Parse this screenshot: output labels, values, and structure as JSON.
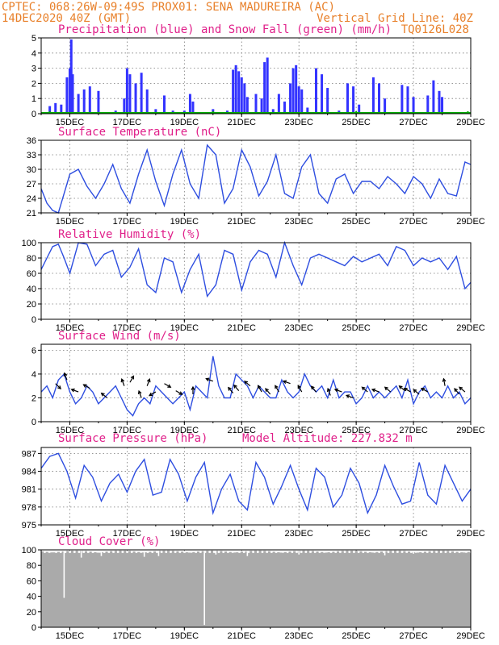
{
  "header": {
    "line1_left": "CPTEC:   068:26W-09:49S   PROX01: SENA MADUREIRA (AC)",
    "line2_left": "14DEC2020 40Z (GMT)",
    "line2_right": "Vertical Grid Line: 40Z",
    "line3_right": "TQ0126L028"
  },
  "colors": {
    "precip": "#3333ff",
    "snow": "#00aa00",
    "line": "#2e4ee0",
    "cloud": "#aaaaaa",
    "title": "#e0208a",
    "header": "#e8802a"
  },
  "x_ticks": [
    "15DEC",
    "17DEC",
    "19DEC",
    "21DEC",
    "23DEC",
    "25DEC",
    "27DEC",
    "29DEC"
  ],
  "chart_data": [
    {
      "id": "precip",
      "type": "bar",
      "title": "Precipitation (blue) and Snow Fall (green) (mm/h)",
      "ylim": [
        0,
        5
      ],
      "yticks": [
        "0",
        "1",
        "2",
        "3",
        "4",
        "5"
      ],
      "series": [
        {
          "name": "blue",
          "points": [
            [
              14.3,
              0.5
            ],
            [
              14.5,
              0.7
            ],
            [
              14.7,
              0.6
            ],
            [
              14.9,
              2.4
            ],
            [
              15.0,
              3.0
            ],
            [
              15.05,
              4.9
            ],
            [
              15.1,
              2.6
            ],
            [
              15.3,
              1.3
            ],
            [
              15.5,
              1.6
            ],
            [
              15.7,
              1.8
            ],
            [
              16.0,
              1.5
            ],
            [
              16.6,
              0.2
            ],
            [
              16.9,
              1.0
            ],
            [
              17.0,
              3.0
            ],
            [
              17.1,
              2.6
            ],
            [
              17.3,
              2.0
            ],
            [
              17.5,
              2.7
            ],
            [
              17.7,
              1.6
            ],
            [
              18.0,
              0.3
            ],
            [
              18.3,
              1.2
            ],
            [
              18.6,
              0.2
            ],
            [
              19.0,
              0.2
            ],
            [
              19.2,
              1.3
            ],
            [
              19.3,
              0.8
            ],
            [
              20.0,
              0.3
            ],
            [
              20.5,
              0.2
            ],
            [
              20.7,
              2.9
            ],
            [
              20.8,
              3.2
            ],
            [
              20.9,
              2.8
            ],
            [
              21.0,
              2.4
            ],
            [
              21.1,
              2.0
            ],
            [
              21.2,
              1.1
            ],
            [
              21.5,
              1.3
            ],
            [
              21.7,
              1.0
            ],
            [
              21.8,
              3.4
            ],
            [
              21.9,
              3.7
            ],
            [
              22.1,
              0.3
            ],
            [
              22.3,
              1.3
            ],
            [
              22.5,
              0.8
            ],
            [
              22.7,
              2.0
            ],
            [
              22.8,
              3.0
            ],
            [
              22.9,
              3.2
            ],
            [
              23.0,
              1.8
            ],
            [
              23.1,
              1.6
            ],
            [
              23.3,
              0.4
            ],
            [
              23.6,
              3.0
            ],
            [
              23.8,
              2.6
            ],
            [
              24.0,
              1.7
            ],
            [
              24.4,
              0.2
            ],
            [
              24.7,
              2.0
            ],
            [
              24.9,
              1.8
            ],
            [
              25.1,
              0.6
            ],
            [
              25.6,
              2.4
            ],
            [
              25.8,
              2.0
            ],
            [
              26.0,
              1.0
            ],
            [
              26.6,
              1.9
            ],
            [
              26.8,
              1.8
            ],
            [
              27.0,
              1.1
            ],
            [
              27.5,
              1.2
            ],
            [
              27.7,
              2.2
            ],
            [
              27.9,
              1.5
            ],
            [
              28.0,
              1.1
            ]
          ]
        },
        {
          "name": "green",
          "points": [
            [
              14.3,
              0.05
            ],
            [
              20.0,
              0.05
            ],
            [
              25.0,
              0.05
            ],
            [
              28.9,
              0.08
            ]
          ]
        }
      ]
    },
    {
      "id": "temperature",
      "type": "line",
      "title": "Surface Temperature (nC)",
      "ylim": [
        21,
        36
      ],
      "yticks": [
        "21",
        "24",
        "27",
        "30",
        "33",
        "36"
      ],
      "x": [
        14.0,
        14.2,
        14.4,
        14.6,
        15.0,
        15.3,
        15.6,
        15.9,
        16.2,
        16.5,
        16.8,
        17.1,
        17.4,
        17.7,
        18.0,
        18.3,
        18.6,
        18.9,
        19.2,
        19.5,
        19.8,
        20.1,
        20.4,
        20.7,
        21.0,
        21.3,
        21.6,
        21.9,
        22.2,
        22.5,
        22.8,
        23.1,
        23.4,
        23.7,
        24.0,
        24.3,
        24.6,
        24.9,
        25.2,
        25.5,
        25.8,
        26.1,
        26.4,
        26.7,
        27.0,
        27.3,
        27.6,
        27.9,
        28.2,
        28.5,
        28.8,
        29.0
      ],
      "values": [
        26.0,
        23.0,
        21.5,
        21.0,
        29.0,
        30.0,
        26.5,
        24.0,
        27.0,
        31.0,
        26.0,
        23.0,
        29.0,
        34.0,
        27.5,
        22.5,
        29.0,
        34.0,
        27.0,
        24.0,
        35.0,
        33.0,
        23.0,
        26.0,
        34.0,
        30.5,
        24.5,
        27.5,
        33.0,
        25.0,
        24.0,
        30.5,
        33.0,
        25.0,
        23.0,
        28.0,
        29.0,
        25.0,
        27.5,
        27.5,
        26.0,
        28.5,
        27.0,
        25.0,
        28.5,
        27.0,
        24.0,
        28.0,
        25.0,
        24.5,
        31.5,
        31.0
      ]
    },
    {
      "id": "humidity",
      "type": "line",
      "title": "Relative Humidity (%)",
      "ylim": [
        0,
        100
      ],
      "yticks": [
        "0",
        "20",
        "40",
        "60",
        "80",
        "100"
      ],
      "x": [
        14.0,
        14.2,
        14.4,
        14.6,
        14.8,
        15.0,
        15.3,
        15.6,
        15.9,
        16.2,
        16.5,
        16.8,
        17.1,
        17.4,
        17.7,
        18.0,
        18.3,
        18.6,
        18.9,
        19.2,
        19.5,
        19.8,
        20.1,
        20.4,
        20.7,
        21.0,
        21.3,
        21.6,
        21.9,
        22.2,
        22.5,
        22.8,
        23.1,
        23.4,
        23.7,
        24.0,
        24.3,
        24.6,
        24.9,
        25.2,
        25.5,
        25.8,
        26.1,
        26.4,
        26.7,
        27.0,
        27.3,
        27.6,
        27.9,
        28.2,
        28.5,
        28.8,
        29.0
      ],
      "values": [
        65.0,
        80.0,
        95.0,
        98.0,
        80.0,
        60.0,
        100.0,
        98.0,
        70.0,
        85.0,
        90.0,
        55.0,
        68.0,
        92.0,
        45.0,
        35.0,
        80.0,
        75.0,
        35.0,
        65.0,
        85.0,
        30.0,
        45.0,
        90.0,
        85.0,
        38.0,
        75.0,
        90.0,
        85.0,
        55.0,
        100.0,
        70.0,
        45.0,
        80.0,
        85.0,
        80.0,
        75.0,
        70.0,
        82.0,
        75.0,
        80.0,
        85.0,
        70.0,
        95.0,
        90.0,
        70.0,
        80.0,
        75.0,
        80.0,
        65.0,
        82.0,
        40.0,
        48.0
      ]
    },
    {
      "id": "wind",
      "type": "line",
      "title": "Surface Wind (m/s)",
      "ylim": [
        0,
        6.5
      ],
      "yticks": [
        "0",
        "2",
        "4",
        "6"
      ],
      "x": [
        14.0,
        14.2,
        14.4,
        14.6,
        14.8,
        15.0,
        15.2,
        15.4,
        15.6,
        15.8,
        16.0,
        16.2,
        16.4,
        16.6,
        16.8,
        17.0,
        17.2,
        17.4,
        17.6,
        17.8,
        18.0,
        18.2,
        18.4,
        18.6,
        18.8,
        19.0,
        19.2,
        19.4,
        19.6,
        19.8,
        20.0,
        20.2,
        20.4,
        20.6,
        20.8,
        21.0,
        21.2,
        21.4,
        21.6,
        21.8,
        22.0,
        22.2,
        22.4,
        22.6,
        22.8,
        23.0,
        23.2,
        23.4,
        23.6,
        23.8,
        24.0,
        24.2,
        24.4,
        24.6,
        24.8,
        25.0,
        25.2,
        25.4,
        25.6,
        25.8,
        26.0,
        26.2,
        26.4,
        26.6,
        26.8,
        27.0,
        27.2,
        27.4,
        27.6,
        27.8,
        28.0,
        28.2,
        28.4,
        28.6,
        28.8,
        29.0
      ],
      "values": [
        2.5,
        3.0,
        2.0,
        3.5,
        4.0,
        2.5,
        1.5,
        2.0,
        3.0,
        2.5,
        1.5,
        2.0,
        2.5,
        3.0,
        2.0,
        1.0,
        0.5,
        1.5,
        2.0,
        1.5,
        3.0,
        2.5,
        2.0,
        1.5,
        2.0,
        2.5,
        1.0,
        3.0,
        2.5,
        2.0,
        5.5,
        3.0,
        2.0,
        2.0,
        4.0,
        3.5,
        3.0,
        2.0,
        3.0,
        2.5,
        2.0,
        2.0,
        3.5,
        2.5,
        2.0,
        2.5,
        4.0,
        3.0,
        2.5,
        3.0,
        2.0,
        3.5,
        2.0,
        2.5,
        2.5,
        1.5,
        2.0,
        3.0,
        2.0,
        2.5,
        2.0,
        2.5,
        3.0,
        2.0,
        3.5,
        1.5,
        2.5,
        3.0,
        2.0,
        2.5,
        2.0,
        3.0,
        2.0,
        2.5,
        1.5,
        2.0
      ],
      "arrows": [
        [
          14.5,
          3.2,
          45
        ],
        [
          14.9,
          3.5,
          250
        ],
        [
          15.3,
          2.5,
          200
        ],
        [
          15.7,
          2.8,
          210
        ],
        [
          16.3,
          2.0,
          220
        ],
        [
          16.9,
          3.0,
          250
        ],
        [
          17.1,
          3.3,
          300
        ],
        [
          17.5,
          2.0,
          250
        ],
        [
          17.7,
          3.0,
          290
        ],
        [
          18.0,
          2.5,
          150
        ],
        [
          18.3,
          3.2,
          30
        ],
        [
          18.7,
          2.6,
          30
        ],
        [
          19.3,
          2.3,
          270
        ],
        [
          20.0,
          3.4,
          200
        ],
        [
          20.7,
          2.4,
          230
        ],
        [
          20.9,
          2.6,
          230
        ],
        [
          21.3,
          3.0,
          220
        ],
        [
          21.7,
          2.5,
          240
        ],
        [
          22.0,
          2.3,
          230
        ],
        [
          22.3,
          2.5,
          240
        ],
        [
          22.7,
          3.2,
          200
        ],
        [
          23.1,
          2.5,
          240
        ],
        [
          23.6,
          2.5,
          230
        ],
        [
          24.1,
          2.2,
          250
        ],
        [
          24.5,
          2.5,
          200
        ],
        [
          24.9,
          2.0,
          200
        ],
        [
          25.4,
          2.5,
          220
        ],
        [
          25.8,
          2.5,
          200
        ],
        [
          26.2,
          2.5,
          220
        ],
        [
          26.7,
          2.6,
          220
        ],
        [
          26.9,
          2.5,
          210
        ],
        [
          27.2,
          2.3,
          220
        ],
        [
          27.5,
          2.5,
          210
        ],
        [
          28.1,
          3.0,
          260
        ],
        [
          28.6,
          2.3,
          230
        ],
        [
          28.8,
          2.5,
          220
        ]
      ]
    },
    {
      "id": "pressure",
      "type": "line",
      "title": "Surface Pressure (hPa)",
      "subtitle": "Model Altitude: 227.832 m",
      "ylim": [
        975,
        988
      ],
      "yticks": [
        "975",
        "978",
        "981",
        "984",
        "987"
      ],
      "x": [
        14.0,
        14.3,
        14.6,
        14.9,
        15.2,
        15.5,
        15.8,
        16.1,
        16.4,
        16.7,
        17.0,
        17.3,
        17.6,
        17.9,
        18.2,
        18.5,
        18.8,
        19.1,
        19.4,
        19.7,
        20.0,
        20.3,
        20.6,
        20.9,
        21.2,
        21.5,
        21.8,
        22.1,
        22.4,
        22.7,
        23.0,
        23.3,
        23.6,
        23.9,
        24.2,
        24.5,
        24.8,
        25.1,
        25.4,
        25.7,
        26.0,
        26.3,
        26.6,
        26.9,
        27.2,
        27.5,
        27.8,
        28.1,
        28.4,
        28.7,
        29.0
      ],
      "values": [
        984.5,
        986.5,
        987.0,
        984.0,
        979.5,
        985.0,
        983.0,
        979.0,
        982.0,
        983.5,
        980.5,
        984.0,
        986.0,
        980.0,
        980.5,
        986.0,
        983.5,
        979.0,
        983.0,
        985.5,
        977.0,
        981.0,
        983.5,
        979.0,
        977.5,
        985.5,
        983.0,
        978.5,
        981.5,
        985.0,
        981.0,
        977.5,
        984.5,
        983.0,
        978.0,
        980.0,
        984.5,
        982.0,
        977.0,
        980.0,
        985.0,
        981.5,
        978.5,
        979.0,
        985.5,
        980.0,
        978.5,
        985.0,
        982.0,
        979.0,
        981.0
      ]
    },
    {
      "id": "cloud",
      "type": "bar",
      "title": "Cloud Cover (%)",
      "ylim": [
        0,
        100
      ],
      "yticks": [
        "0",
        "20",
        "40",
        "60",
        "80",
        "100"
      ],
      "base_value": 96,
      "dips": [
        [
          14.8,
          38
        ],
        [
          15.4,
          90
        ],
        [
          16.1,
          92
        ],
        [
          17.6,
          91
        ],
        [
          18.1,
          92
        ],
        [
          19.7,
          3
        ],
        [
          20.1,
          94
        ],
        [
          21.2,
          92
        ],
        [
          23.0,
          94
        ],
        [
          26.0,
          93
        ],
        [
          27.0,
          95
        ]
      ]
    }
  ]
}
